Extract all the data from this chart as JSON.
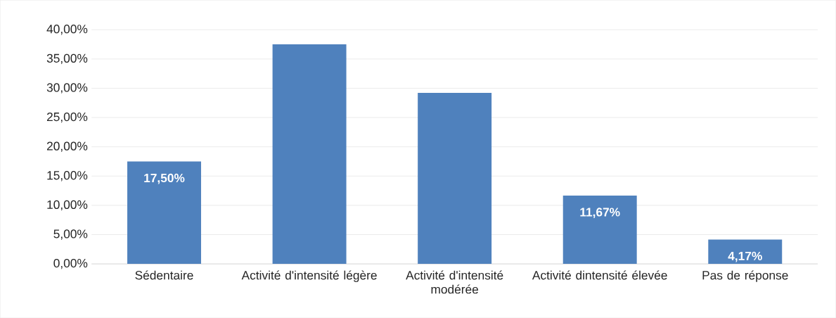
{
  "chart_data": {
    "type": "bar",
    "categories": [
      "Sédentaire",
      "Activité d'intensité légère",
      "Activité d'intensité modérée",
      "Activité dintensité élevée",
      "Pas de réponse"
    ],
    "values": [
      17.5,
      37.5,
      29.2,
      11.67,
      4.17
    ],
    "value_labels": [
      "17,50%",
      null,
      null,
      "11,67%",
      "4,17%"
    ],
    "color": "#4f81bd",
    "ylim": [
      0,
      40
    ],
    "yticks": [
      {
        "value": 0,
        "label": "0,00%"
      },
      {
        "value": 5,
        "label": "5,00%"
      },
      {
        "value": 10,
        "label": "10,00%"
      },
      {
        "value": 15,
        "label": "15,00%"
      },
      {
        "value": 20,
        "label": "20,00%"
      },
      {
        "value": 25,
        "label": "25,00%"
      },
      {
        "value": 30,
        "label": "30,00%"
      },
      {
        "value": 35,
        "label": "35,00%"
      },
      {
        "value": 40,
        "label": "40,00%"
      }
    ],
    "grid": "y"
  }
}
